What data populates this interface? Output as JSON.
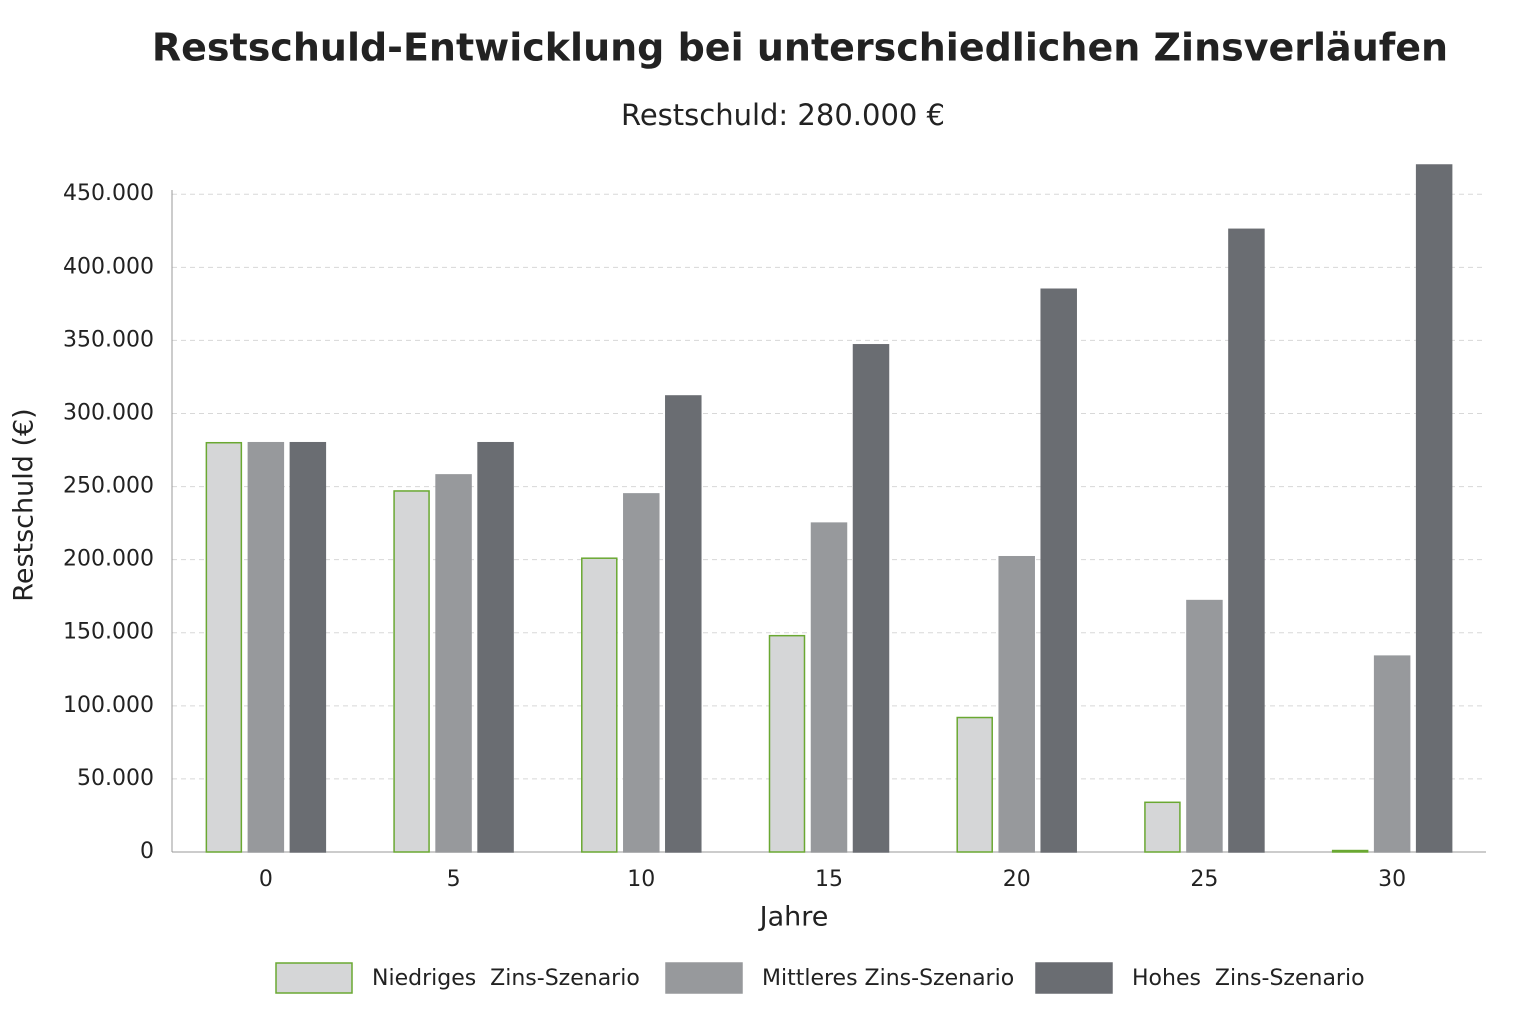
{
  "chart_data": {
    "type": "bar",
    "title": "Restschuld-Entwicklung bei unterschiedlichen Zinsverläufen",
    "subtitle": "Restschuld: 280.000 €",
    "x_label": "Jahre",
    "y_label": "Restschuld (€)",
    "categories": [
      "0",
      "5",
      "10",
      "15",
      "20",
      "25",
      "30"
    ],
    "series": [
      {
        "name": "Niedriges  Zins-Szenario",
        "color": "#d5d6d7",
        "edgecolor": "#6aa832",
        "values": [
          280000,
          247000,
          201000,
          148000,
          92000,
          34000,
          1000
        ]
      },
      {
        "name": "Mittleres Zins-Szenario",
        "color": "#97999c",
        "edgecolor": "#97999c",
        "values": [
          280000,
          258000,
          245000,
          225000,
          202000,
          172000,
          134000
        ]
      },
      {
        "name": "Hohes  Zins-Szenario",
        "color": "#6a6d72",
        "edgecolor": "#6a6d72",
        "values": [
          280000,
          280000,
          312000,
          347000,
          385000,
          426000,
          470000
        ]
      }
    ],
    "ylim": [
      0,
      470000
    ],
    "yticks": [
      0,
      {
        "value": 50000,
        "label": "50.000"
      },
      {
        "value": 100000,
        "label": "100.000"
      },
      {
        "value": 150000,
        "label": "150.000"
      },
      {
        "value": 200000,
        "label": "200.000"
      },
      {
        "value": 250000,
        "label": "250.000"
      },
      {
        "value": 300000,
        "label": "300.000"
      },
      {
        "value": 350000,
        "label": "350.000"
      },
      {
        "value": 400000,
        "label": "400.000"
      },
      {
        "value": 450000,
        "label": "450.000"
      }
    ],
    "grid": true,
    "legend": "bottom"
  }
}
